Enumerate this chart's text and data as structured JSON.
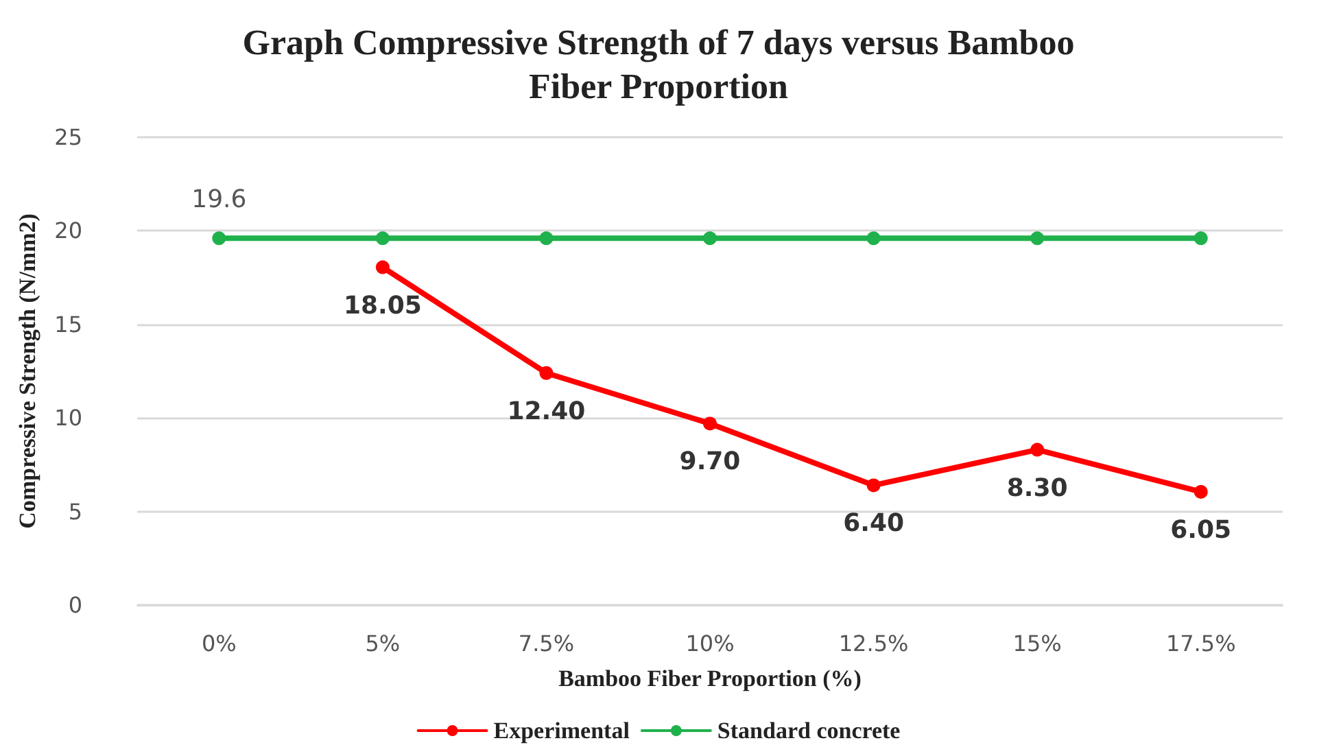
{
  "chart_data": {
    "type": "line",
    "title": "Graph Compressive Strength of 7 days versus Bamboo\nFiber Proportion",
    "xlabel": "Bamboo Fiber Proportion (%)",
    "ylabel": "Compressive Strength (N/mm2)",
    "categories": [
      "0%",
      "5%",
      "7.5%",
      "10%",
      "12.5%",
      "15%",
      "17.5%"
    ],
    "series": [
      {
        "name": "Experimental",
        "color": "#ff0000",
        "values": [
          null,
          18.05,
          12.4,
          9.7,
          6.4,
          8.3,
          6.05
        ],
        "value_labels": [
          null,
          "18.05",
          "12.40",
          "9.70",
          "6.40",
          "8.30",
          "6.05"
        ]
      },
      {
        "name": "Standard concrete",
        "color": "#1fb14c",
        "values": [
          19.6,
          19.6,
          19.6,
          19.6,
          19.6,
          19.6,
          19.6
        ],
        "value_labels": [
          "19.6",
          null,
          null,
          null,
          null,
          null,
          null
        ]
      }
    ],
    "ylim": [
      0,
      25
    ],
    "yticks": [
      0,
      5,
      10,
      15,
      20,
      25
    ],
    "grid": "y",
    "legend": "bottom",
    "marker": "circle",
    "line_style": "solid"
  }
}
